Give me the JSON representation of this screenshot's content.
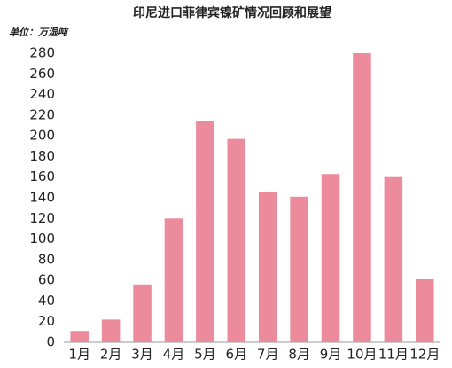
{
  "chart_data": {
    "type": "bar",
    "title": "印尼进口菲律宾镍矿情况回顾和展望",
    "unit_label": "单位：万湿吨",
    "categories": [
      "1月",
      "2月",
      "3月",
      "4月",
      "5月",
      "6月",
      "7月",
      "8月",
      "9月",
      "10月",
      "11月",
      "12月"
    ],
    "values": [
      11,
      22,
      56,
      120,
      214,
      197,
      146,
      141,
      163,
      280,
      160,
      61
    ],
    "color": "#ec8b9c",
    "ylim": [
      0,
      280
    ],
    "yticks": [
      0,
      20,
      40,
      60,
      80,
      100,
      120,
      140,
      160,
      180,
      200,
      220,
      240,
      260,
      280
    ],
    "grid": false
  }
}
